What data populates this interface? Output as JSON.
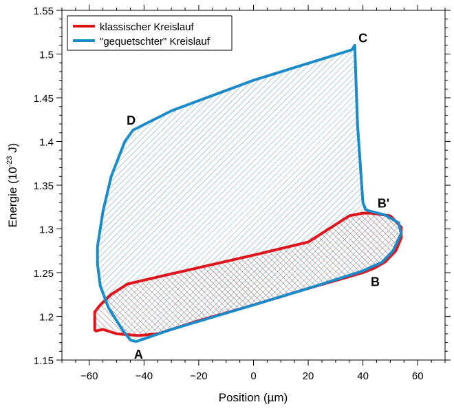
{
  "chart_data": {
    "type": "line",
    "xlabel": "Position (µm)",
    "ylabel_main": "Energie (10",
    "ylabel_sup": "-23",
    "ylabel_end": " J)",
    "xlim": [
      -70,
      70
    ],
    "ylim": [
      1.15,
      1.55
    ],
    "xticks": [
      -60,
      -40,
      -20,
      0,
      20,
      40,
      60
    ],
    "yticks": [
      1.15,
      1.2,
      1.25,
      1.3,
      1.35,
      1.4,
      1.45,
      1.5,
      1.55
    ],
    "ytick_labels": [
      "1.15",
      "1.2",
      "1.25",
      "1.3",
      "1.35",
      "1.4",
      "1.45",
      "1.5",
      "1.55"
    ],
    "grid": false,
    "legend_placement": "top-left",
    "series": [
      {
        "name": "klassischer Kreislauf",
        "color": "#e0141b",
        "hatch": "diagonal-up",
        "points": [
          [
            -58,
            1.183
          ],
          [
            -58,
            1.205
          ],
          [
            -56,
            1.213
          ],
          [
            -52,
            1.225
          ],
          [
            -46,
            1.237
          ],
          [
            -35,
            1.245
          ],
          [
            0,
            1.27
          ],
          [
            20,
            1.285
          ],
          [
            35,
            1.315
          ],
          [
            40,
            1.318
          ],
          [
            43,
            1.318
          ],
          [
            50,
            1.315
          ],
          [
            54,
            1.302
          ],
          [
            54,
            1.29
          ],
          [
            52,
            1.275
          ],
          [
            48,
            1.262
          ],
          [
            44,
            1.255
          ],
          [
            40,
            1.25
          ],
          [
            20,
            1.232
          ],
          [
            0,
            1.213
          ],
          [
            -20,
            1.195
          ],
          [
            -35,
            1.18
          ],
          [
            -42,
            1.178
          ],
          [
            -50,
            1.18
          ],
          [
            -55,
            1.185
          ],
          [
            -58,
            1.183
          ]
        ]
      },
      {
        "name": "\"gequetschter\" Kreislauf",
        "color": "#1a8ac8",
        "hatch": "diagonal-down",
        "points": [
          [
            -43,
            1.171
          ],
          [
            -30,
            1.185
          ],
          [
            0,
            1.213
          ],
          [
            20,
            1.232
          ],
          [
            40,
            1.252
          ],
          [
            47,
            1.262
          ],
          [
            51,
            1.275
          ],
          [
            54,
            1.295
          ],
          [
            53,
            1.307
          ],
          [
            48,
            1.316
          ],
          [
            43,
            1.32
          ],
          [
            41,
            1.322
          ],
          [
            40,
            1.33
          ],
          [
            38,
            1.42
          ],
          [
            37,
            1.51
          ],
          [
            36,
            1.505
          ],
          [
            0,
            1.47
          ],
          [
            -30,
            1.435
          ],
          [
            -44,
            1.413
          ],
          [
            -47,
            1.4
          ],
          [
            -52,
            1.36
          ],
          [
            -55,
            1.32
          ],
          [
            -57,
            1.28
          ],
          [
            -57,
            1.26
          ],
          [
            -56,
            1.235
          ],
          [
            -53,
            1.21
          ],
          [
            -48,
            1.185
          ],
          [
            -45,
            1.173
          ],
          [
            -43,
            1.171
          ]
        ]
      }
    ],
    "annotations": [
      {
        "text": "A",
        "x": -42,
        "y": 1.157
      },
      {
        "text": "B",
        "x": 44.5,
        "y": 1.24
      },
      {
        "text": "B'",
        "x": 47.5,
        "y": 1.33
      },
      {
        "text": "C",
        "x": 40,
        "y": 1.519
      },
      {
        "text": "D",
        "x": -44.7,
        "y": 1.425
      }
    ]
  }
}
